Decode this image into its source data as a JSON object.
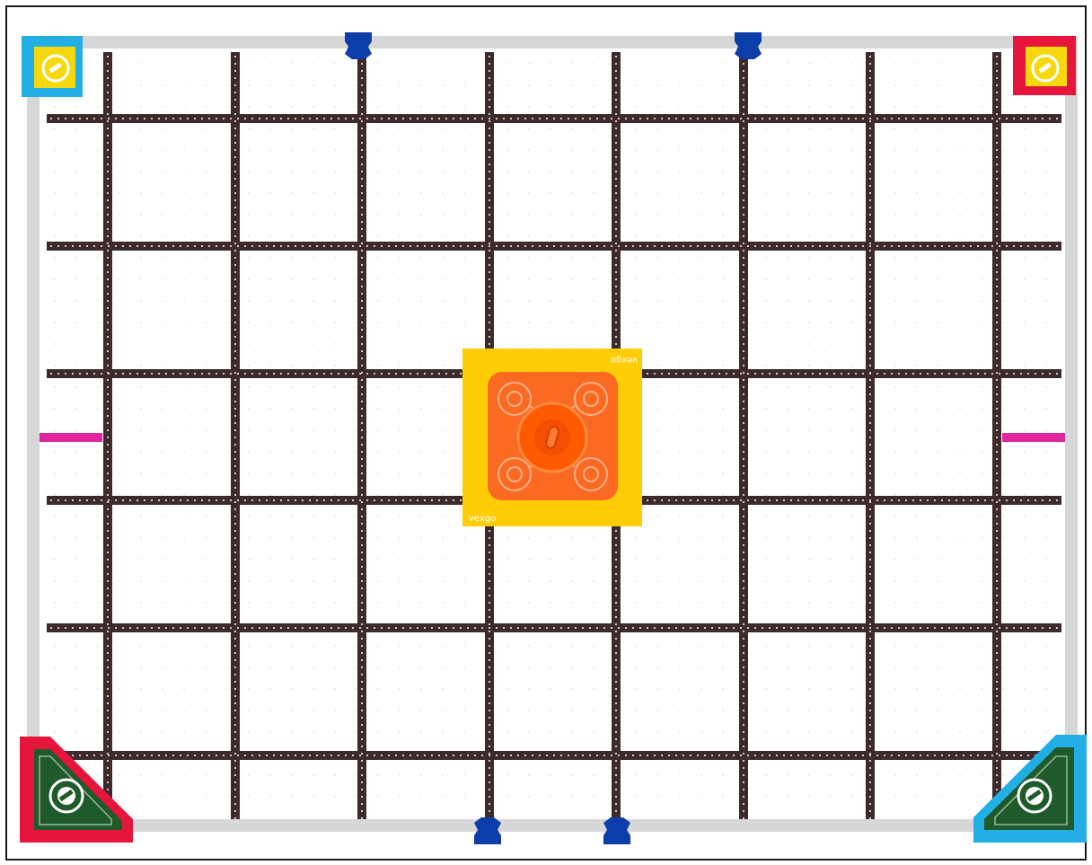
{
  "field": {
    "grid_columns": 8,
    "grid_rows": 6,
    "colors": {
      "frame_border": "#1a1a1a",
      "wall": "#d7d7d7",
      "tile": "#ffffff",
      "tape": "#3d2a2c",
      "tape_dots": "#d9cdbf",
      "red": "#e5153c",
      "cyan": "#23aee6",
      "yellow_goal": "#f6d90c",
      "green_goal": "#1f5a2a",
      "center_mat": "#ffcc08",
      "center_pad": "#fa6a22",
      "center_cap": "#ff5a00",
      "blue_post": "#0d3da8",
      "magenta_line": "#e0259d"
    }
  },
  "center_piece": {
    "logo_text": "vexgo"
  },
  "icons": {
    "corner_goal": "screw-slot-icon",
    "wall_post": "blue-post-icon",
    "center_cap": "orange-cap-icon"
  }
}
